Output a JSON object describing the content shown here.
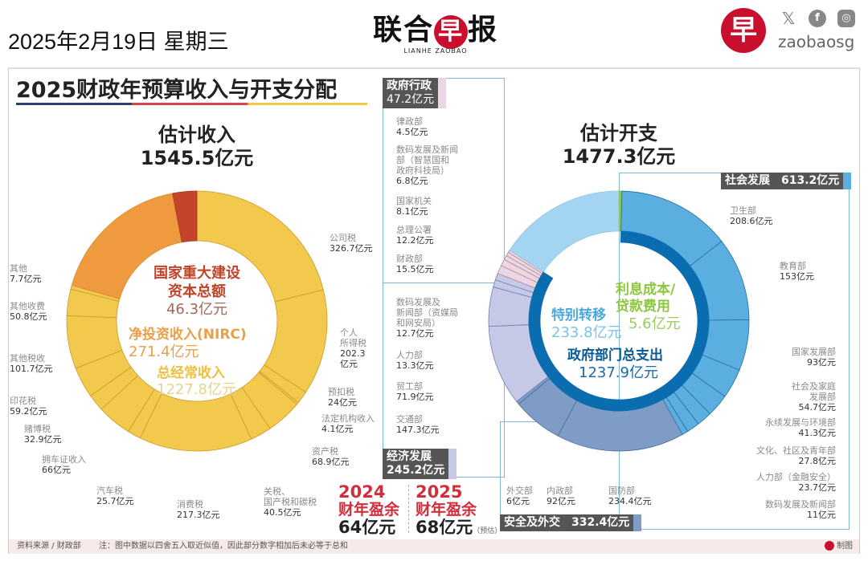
{
  "header": {
    "date": "2025年2月19日 星期三",
    "logo_cn": [
      "联",
      "合",
      "早",
      "报"
    ],
    "logo_en": "LIANHE ZAOBAO",
    "brand_glyph": "早",
    "social_icons": [
      "x-icon",
      "facebook-icon",
      "instagram-icon"
    ],
    "handle": "zaobaosg"
  },
  "title": "2025财政年预算收入与开支分配",
  "colors": {
    "regular": "#f2c94c",
    "nirc": "#ef9a3f",
    "capital": "#c4442b",
    "social": "#5aaee0",
    "security": "#7f9cc7",
    "economic": "#c5c9e6",
    "gov_admin": "#ecd6e2",
    "special": "#a3d5f2",
    "ministry_ring": "#0a6db0",
    "interest": "#8dc63f",
    "surplus": "#d22d3a"
  },
  "income": {
    "heading": "估计收入",
    "total": "1545.5亿元",
    "capital_title1": "国家重大建设",
    "capital_title2": "资本总额",
    "capital_value": "46.3亿元",
    "nirc_title": "净投资收入(NIRC)",
    "nirc_value": "271.4亿元",
    "regular_title": "总经常收入",
    "regular_value": "1227.8亿元"
  },
  "expenditure": {
    "heading": "估计开支",
    "total": "1477.3亿元",
    "special_title": "特别转移",
    "special_value": "233.8亿元",
    "interest_title1": "利息成本/",
    "interest_title2": "贷款费用",
    "interest_value": "5.6亿元",
    "ministry_title": "政府部门总支出",
    "ministry_value": "1237.9亿元",
    "groups": {
      "gov_admin": {
        "name": "政府行政",
        "value": "47.2亿元"
      },
      "economic": {
        "name": "经济发展",
        "value": "245.2亿元"
      },
      "social": {
        "name": "社会发展",
        "value": "613.2亿元"
      },
      "security": {
        "name": "安全及外交",
        "value": "332.4亿元"
      }
    }
  },
  "surplus": [
    {
      "year": "2024",
      "label": "财年盈余",
      "value": "64亿元",
      "note": ""
    },
    {
      "year": "2025",
      "label": "财年盈余",
      "value": "68亿元",
      "note": "（预估）"
    }
  ],
  "footer": {
    "source": "资料来源 / 财政部",
    "note": "注：图中数据以四舍五入取近似值，因此部分数字相加后未必等于总和",
    "credit": "制图"
  },
  "chart_data": [
    {
      "type": "pie",
      "subtype": "donut",
      "unit": "亿元",
      "total": 1545.5,
      "title": "估计收入",
      "slices": [
        {
          "group": "regular",
          "label": "公司税",
          "value": 326.7,
          "text": "326.7亿元"
        },
        {
          "group": "regular",
          "label": "个人\n所得税",
          "value": 202.3,
          "text": "202.3\n亿元"
        },
        {
          "group": "regular",
          "label": "预扣税",
          "value": 24,
          "text": "24亿元"
        },
        {
          "group": "regular",
          "label": "法定机构收入",
          "value": 4.1,
          "text": "4.1亿元"
        },
        {
          "group": "regular",
          "label": "资产税",
          "value": 68.9,
          "text": "68.9亿元"
        },
        {
          "group": "regular",
          "label": "关税、\n国产税和碳税",
          "value": 40.5,
          "text": "40.5亿元"
        },
        {
          "group": "regular",
          "label": "消费税",
          "value": 217.3,
          "text": "217.3亿元"
        },
        {
          "group": "regular",
          "label": "汽车税",
          "value": 25.7,
          "text": "25.7亿元"
        },
        {
          "group": "regular",
          "label": "拥车证收入",
          "value": 66,
          "text": "66亿元"
        },
        {
          "group": "regular",
          "label": "赌博税",
          "value": 32.9,
          "text": "32.9亿元"
        },
        {
          "group": "regular",
          "label": "印花税",
          "value": 59.2,
          "text": "59.2亿元"
        },
        {
          "group": "regular",
          "label": "其他税收",
          "value": 101.7,
          "text": "101.7亿元"
        },
        {
          "group": "regular",
          "label": "其他收费",
          "value": 50.8,
          "text": "50.8亿元"
        },
        {
          "group": "regular",
          "label": "其他",
          "value": 7.7,
          "text": "7.7亿元"
        },
        {
          "group": "nirc",
          "label": "净投资收入(NIRC)",
          "value": 271.4
        },
        {
          "group": "capital",
          "label": "国家重大建设资本总额",
          "value": 46.3
        }
      ]
    },
    {
      "type": "pie",
      "subtype": "donut",
      "unit": "亿元",
      "total": 1477.3,
      "title": "估计开支",
      "slices": [
        {
          "group": "interest",
          "label": "利息成本/贷款费用",
          "value": 5.6
        },
        {
          "group": "social",
          "label": "卫生部",
          "value": 208.6,
          "text": "208.6亿元"
        },
        {
          "group": "social",
          "label": "教育部",
          "value": 153,
          "text": "153亿元"
        },
        {
          "group": "social",
          "label": "国家发展部",
          "value": 93,
          "text": "93亿元"
        },
        {
          "group": "social",
          "label": "社会及家庭\n发展部",
          "value": 54.7,
          "text": "54.7亿元"
        },
        {
          "group": "social",
          "label": "永续发展与环境部",
          "value": 41.3,
          "text": "41.3亿元"
        },
        {
          "group": "social",
          "label": "文化、社区及青年部",
          "value": 27.8,
          "text": "27.8亿元"
        },
        {
          "group": "social",
          "label": "人力部（金融安全）",
          "value": 23.7,
          "text": "23.7亿元"
        },
        {
          "group": "social",
          "label": "数码发展及新闻部",
          "value": 11,
          "text": "11亿元"
        },
        {
          "group": "security",
          "label": "国防部",
          "value": 234.4,
          "text": "234.4亿元"
        },
        {
          "group": "security",
          "label": "内政部",
          "value": 92,
          "text": "92亿元"
        },
        {
          "group": "security",
          "label": "外交部",
          "value": 6,
          "text": "6亿元"
        },
        {
          "group": "economic",
          "label": "交通部",
          "value": 147.3,
          "text": "147.3亿元"
        },
        {
          "group": "economic",
          "label": "贸工部",
          "value": 71.9,
          "text": "71.9亿元"
        },
        {
          "group": "economic",
          "label": "人力部",
          "value": 13.3,
          "text": "13.3亿元"
        },
        {
          "group": "economic",
          "label": "数码发展及\n新闻部（资媒局\n和网安局）",
          "value": 12.7,
          "text": "12.7亿元"
        },
        {
          "group": "gov_admin",
          "label": "财政部",
          "value": 15.5,
          "text": "15.5亿元"
        },
        {
          "group": "gov_admin",
          "label": "总理公署",
          "value": 12.2,
          "text": "12.2亿元"
        },
        {
          "group": "gov_admin",
          "label": "国家机关",
          "value": 8.1,
          "text": "8.1亿元"
        },
        {
          "group": "gov_admin",
          "label": "数码发展及新闻\n部（智慧国和\n政府科技局）",
          "value": 6.8,
          "text": "6.8亿元"
        },
        {
          "group": "gov_admin",
          "label": "律政部",
          "value": 4.5,
          "text": "4.5亿元"
        },
        {
          "group": "special",
          "label": "特别转移",
          "value": 233.8
        }
      ],
      "inner_ring": {
        "label": "政府部门总支出",
        "value": 1237.9
      }
    }
  ]
}
